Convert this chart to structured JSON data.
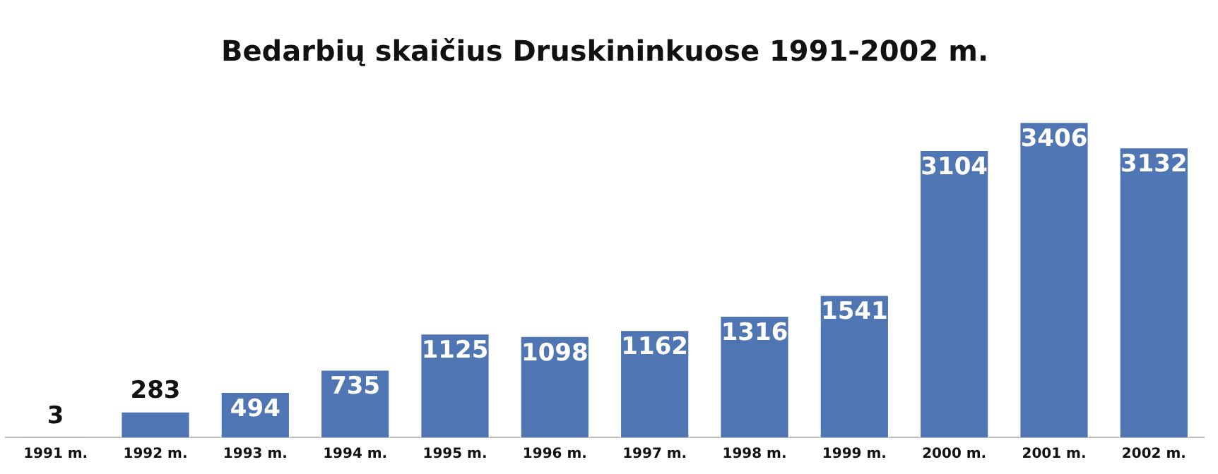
{
  "chart_data": {
    "type": "bar",
    "title": "Bedarbių skaičius Druskininkuose 1991-2002 m.",
    "categories": [
      "1991 m.",
      "1992 m.",
      "1993 m.",
      "1994 m.",
      "1995 m.",
      "1996 m.",
      "1997 m.",
      "1998 m.",
      "1999 m.",
      "2000 m.",
      "2001 m.",
      "2002 m."
    ],
    "values": [
      3,
      283,
      494,
      735,
      1125,
      1098,
      1162,
      1316,
      1541,
      3104,
      3406,
      3132
    ],
    "color": "#4f76b2",
    "data_labels": true,
    "grid": false,
    "legend": false
  }
}
